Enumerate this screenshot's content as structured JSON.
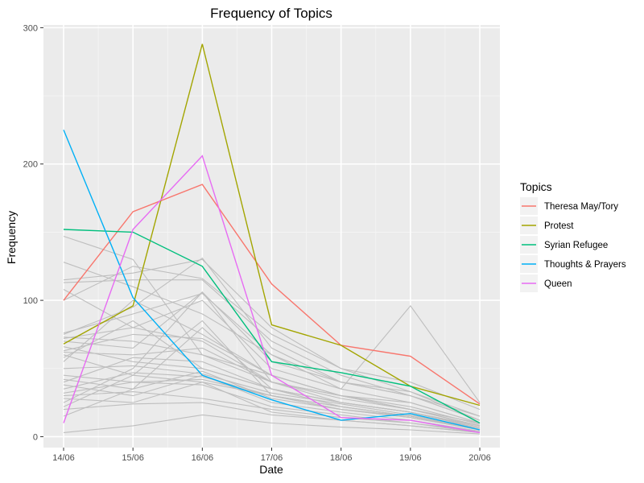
{
  "chart_data": {
    "type": "line",
    "title": "Frequency of Topics",
    "xlabel": "Date",
    "ylabel": "Frequency",
    "categories": [
      "14/06",
      "15/06",
      "16/06",
      "17/06",
      "18/06",
      "19/06",
      "20/06"
    ],
    "yticks": [
      0,
      100,
      200,
      300
    ],
    "ylim": [
      -8,
      302
    ],
    "grid": true,
    "legend": {
      "title": "Topics",
      "placement": "right"
    },
    "series": [
      {
        "name": "Theresa May/Tory",
        "color": "#F8766D",
        "values": [
          100,
          165,
          185,
          112,
          67,
          59,
          24
        ]
      },
      {
        "name": "Protest",
        "color": "#A3A500",
        "values": [
          68,
          96,
          288,
          82,
          67,
          37,
          23
        ]
      },
      {
        "name": "Syrian Refugee",
        "color": "#00BF7D",
        "values": [
          152,
          150,
          125,
          55,
          47,
          37,
          10
        ]
      },
      {
        "name": "Thoughts & Prayers",
        "color": "#00B0F6",
        "values": [
          225,
          102,
          45,
          27,
          12,
          17,
          5
        ]
      },
      {
        "name": "Queen",
        "color": "#E76BF3",
        "values": [
          10,
          152,
          206,
          45,
          14,
          12,
          3
        ]
      }
    ],
    "background_series_color": "#BEBEBE",
    "background_series": [
      [
        147,
        130,
        60,
        40,
        30,
        20,
        10
      ],
      [
        128,
        110,
        90,
        60,
        40,
        30,
        15
      ],
      [
        115,
        120,
        130,
        80,
        50,
        40,
        20
      ],
      [
        113,
        115,
        115,
        70,
        45,
        30,
        12
      ],
      [
        108,
        80,
        70,
        40,
        30,
        20,
        8
      ],
      [
        100,
        125,
        116,
        75,
        50,
        33,
        15
      ],
      [
        76,
        90,
        105,
        60,
        35,
        96,
        25
      ],
      [
        75,
        95,
        131,
        65,
        40,
        33,
        12
      ],
      [
        73,
        70,
        60,
        45,
        30,
        25,
        10
      ],
      [
        72,
        80,
        100,
        50,
        35,
        25,
        10
      ],
      [
        70,
        65,
        106,
        55,
        40,
        30,
        12
      ],
      [
        66,
        55,
        50,
        35,
        25,
        18,
        8
      ],
      [
        63,
        75,
        72,
        45,
        30,
        20,
        8
      ],
      [
        62,
        60,
        65,
        40,
        28,
        20,
        8
      ],
      [
        60,
        45,
        40,
        30,
        22,
        15,
        6
      ],
      [
        58,
        85,
        50,
        35,
        25,
        18,
        7
      ],
      [
        55,
        100,
        75,
        45,
        30,
        22,
        9
      ],
      [
        50,
        52,
        46,
        32,
        24,
        16,
        6
      ],
      [
        45,
        40,
        42,
        30,
        22,
        15,
        5
      ],
      [
        42,
        35,
        48,
        28,
        20,
        14,
        5
      ],
      [
        40,
        58,
        55,
        35,
        25,
        18,
        6
      ],
      [
        38,
        30,
        45,
        25,
        18,
        12,
        4
      ],
      [
        35,
        47,
        44,
        30,
        20,
        14,
        5
      ],
      [
        32,
        40,
        38,
        22,
        16,
        10,
        4
      ],
      [
        30,
        33,
        28,
        20,
        14,
        10,
        3
      ],
      [
        28,
        25,
        40,
        18,
        12,
        8,
        3
      ],
      [
        25,
        50,
        106,
        40,
        25,
        18,
        6
      ],
      [
        22,
        45,
        85,
        30,
        20,
        15,
        5
      ],
      [
        20,
        24,
        25,
        16,
        12,
        8,
        3
      ],
      [
        15,
        35,
        80,
        35,
        22,
        15,
        5
      ],
      [
        3,
        8,
        16,
        10,
        7,
        5,
        2
      ]
    ]
  }
}
